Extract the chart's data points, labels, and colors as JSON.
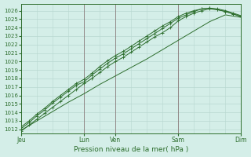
{
  "xlabel": "Pression niveau de la mer( hPa )",
  "bg_color": "#d4eee8",
  "grid_color": "#b8d8d0",
  "line_color": "#2d6e2d",
  "vline_color": "#8a7a7a",
  "ylim": [
    1011.5,
    1026.8
  ],
  "yticks": [
    1012,
    1013,
    1014,
    1015,
    1016,
    1017,
    1018,
    1019,
    1020,
    1021,
    1022,
    1023,
    1024,
    1025,
    1026
  ],
  "day_labels": [
    "Jeu",
    "",
    "Lun",
    "Ven",
    "",
    "Sam",
    "",
    "Dim"
  ],
  "day_positions": [
    0,
    24,
    48,
    72,
    96,
    120,
    144,
    168
  ],
  "day_tick_labels": [
    "Jeu",
    "Lun",
    "Ven",
    "Sam",
    "Dim"
  ],
  "day_tick_pos": [
    0,
    48,
    72,
    120,
    168
  ],
  "total_hours": 168,
  "line1_x": [
    0,
    6,
    12,
    18,
    24,
    30,
    36,
    42,
    48,
    54,
    60,
    66,
    72,
    78,
    84,
    90,
    96,
    102,
    108,
    114,
    120,
    126,
    132,
    138,
    144,
    150,
    156,
    162,
    168
  ],
  "line1_y": [
    1011.8,
    1012.5,
    1013.2,
    1013.9,
    1014.6,
    1015.3,
    1016.0,
    1016.7,
    1017.4,
    1018.0,
    1018.7,
    1019.4,
    1020.0,
    1020.5,
    1021.1,
    1021.7,
    1022.3,
    1022.9,
    1023.4,
    1024.0,
    1024.8,
    1025.3,
    1025.7,
    1026.0,
    1026.2,
    1026.1,
    1025.9,
    1025.6,
    1025.3
  ],
  "line2_x": [
    0,
    6,
    12,
    18,
    24,
    30,
    36,
    42,
    48,
    54,
    60,
    66,
    72,
    78,
    84,
    90,
    96,
    102,
    108,
    114,
    120,
    126,
    132,
    138,
    144,
    150,
    156,
    162,
    168
  ],
  "line2_y": [
    1012.1,
    1012.8,
    1013.6,
    1014.3,
    1015.1,
    1015.8,
    1016.5,
    1017.2,
    1017.6,
    1018.4,
    1019.1,
    1019.8,
    1020.4,
    1020.9,
    1021.5,
    1022.1,
    1022.7,
    1023.3,
    1023.9,
    1024.5,
    1025.1,
    1025.5,
    1025.9,
    1026.2,
    1026.3,
    1026.2,
    1026.0,
    1025.7,
    1025.4
  ],
  "line3_x": [
    0,
    6,
    12,
    18,
    24,
    30,
    36,
    42,
    48,
    54,
    60,
    66,
    72,
    78,
    84,
    90,
    96,
    102,
    108,
    114,
    120,
    126,
    132,
    138,
    144,
    150,
    156,
    162,
    168
  ],
  "line3_y": [
    1012.3,
    1013.0,
    1013.8,
    1014.5,
    1015.3,
    1016.0,
    1016.7,
    1017.4,
    1017.9,
    1018.6,
    1019.4,
    1020.1,
    1020.7,
    1021.2,
    1021.8,
    1022.4,
    1023.0,
    1023.6,
    1024.2,
    1024.7,
    1025.3,
    1025.7,
    1026.0,
    1026.2,
    1026.3,
    1026.1,
    1025.9,
    1025.6,
    1025.3
  ],
  "line4_x": [
    0,
    12,
    24,
    36,
    48,
    60,
    72,
    84,
    96,
    108,
    120,
    132,
    144,
    156,
    168
  ],
  "line4_y": [
    1011.9,
    1013.0,
    1014.1,
    1015.2,
    1016.2,
    1017.3,
    1018.3,
    1019.3,
    1020.3,
    1021.4,
    1022.5,
    1023.6,
    1024.7,
    1025.5,
    1025.2
  ]
}
